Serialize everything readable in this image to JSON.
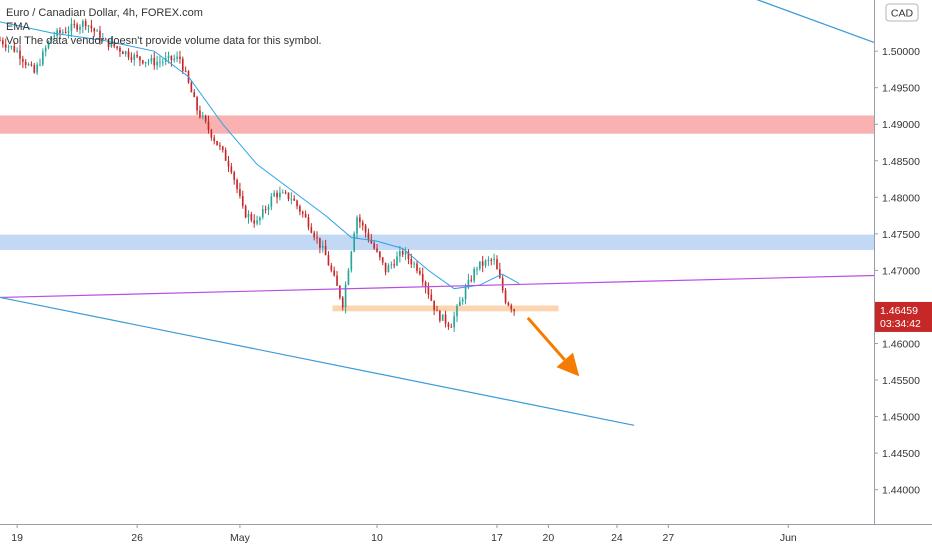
{
  "chart_data": {
    "type": "candlestick",
    "symbol_title": "Euro / Canadian Dollar, 4h, FOREX.com",
    "indicator_label": "EMA",
    "notice": "Vol The data vendor doesn't provide volume data for this symbol.",
    "currency_badge": "CAD",
    "last_price_label": "1.46459",
    "countdown_label": "03:34:42",
    "price_axis": {
      "ylim": [
        1.4353,
        1.507
      ],
      "ticks": [
        "1.50000",
        "1.49500",
        "1.49000",
        "1.48500",
        "1.48000",
        "1.47500",
        "1.47000",
        "1.46500",
        "1.46000",
        "1.45500",
        "1.45000",
        "1.44500",
        "1.44000"
      ]
    },
    "time_axis": {
      "x_range_days": [
        0,
        51
      ],
      "ticks": [
        {
          "day": 1,
          "label": "19"
        },
        {
          "day": 8,
          "label": "26"
        },
        {
          "day": 14,
          "label": "May"
        },
        {
          "day": 22,
          "label": "10"
        },
        {
          "day": 29,
          "label": "17"
        },
        {
          "day": 32,
          "label": "20"
        },
        {
          "day": 36,
          "label": "24"
        },
        {
          "day": 39,
          "label": "27"
        },
        {
          "day": 46,
          "label": "Jun"
        }
      ]
    },
    "price_path": [
      {
        "day": 0.0,
        "price": 1.5015
      },
      {
        "day": 1.0,
        "price": 1.5
      },
      {
        "day": 2.0,
        "price": 1.497
      },
      {
        "day": 3.0,
        "price": 1.502
      },
      {
        "day": 5.0,
        "price": 1.504
      },
      {
        "day": 6.0,
        "price": 1.5015
      },
      {
        "day": 8.0,
        "price": 1.499
      },
      {
        "day": 9.0,
        "price": 1.4985
      },
      {
        "day": 10.5,
        "price": 1.499
      },
      {
        "day": 11.5,
        "price": 1.492
      },
      {
        "day": 12.5,
        "price": 1.488
      },
      {
        "day": 13.5,
        "price": 1.484
      },
      {
        "day": 14.2,
        "price": 1.478
      },
      {
        "day": 15.0,
        "price": 1.4765
      },
      {
        "day": 16.0,
        "price": 1.4805
      },
      {
        "day": 17.0,
        "price": 1.48
      },
      {
        "day": 18.0,
        "price": 1.4765
      },
      {
        "day": 19.0,
        "price": 1.472
      },
      {
        "day": 20.0,
        "price": 1.4655
      },
      {
        "day": 20.8,
        "price": 1.4775
      },
      {
        "day": 21.5,
        "price": 1.4745
      },
      {
        "day": 22.5,
        "price": 1.47
      },
      {
        "day": 23.5,
        "price": 1.4725
      },
      {
        "day": 24.5,
        "price": 1.47
      },
      {
        "day": 25.5,
        "price": 1.464
      },
      {
        "day": 26.3,
        "price": 1.4625
      },
      {
        "day": 27.0,
        "price": 1.4665
      },
      {
        "day": 27.8,
        "price": 1.4705
      },
      {
        "day": 28.8,
        "price": 1.4715
      },
      {
        "day": 29.5,
        "price": 1.466
      },
      {
        "day": 30.0,
        "price": 1.4646
      }
    ],
    "ema": [
      {
        "day": 0.0,
        "price": 1.504
      },
      {
        "day": 3.0,
        "price": 1.5025
      },
      {
        "day": 6.0,
        "price": 1.5015
      },
      {
        "day": 9.0,
        "price": 1.5
      },
      {
        "day": 11.0,
        "price": 1.4965
      },
      {
        "day": 13.0,
        "price": 1.49
      },
      {
        "day": 15.0,
        "price": 1.4845
      },
      {
        "day": 17.0,
        "price": 1.481
      },
      {
        "day": 19.0,
        "price": 1.4775
      },
      {
        "day": 20.5,
        "price": 1.4745
      },
      {
        "day": 22.0,
        "price": 1.474
      },
      {
        "day": 23.5,
        "price": 1.473
      },
      {
        "day": 25.0,
        "price": 1.47
      },
      {
        "day": 26.5,
        "price": 1.4675
      },
      {
        "day": 28.0,
        "price": 1.468
      },
      {
        "day": 29.3,
        "price": 1.4695
      },
      {
        "day": 30.3,
        "price": 1.4682
      }
    ],
    "zones": [
      {
        "name": "resistance",
        "from_day": 0,
        "to_day": 51,
        "price_low": 1.4887,
        "price_high": 1.4912,
        "color": "#f8a9a9"
      },
      {
        "name": "support-resistance",
        "from_day": 0,
        "to_day": 51,
        "price_low": 1.4728,
        "price_high": 1.4749,
        "color": "#bcd4f4"
      },
      {
        "name": "support",
        "from_day": 19.4,
        "to_day": 32.6,
        "price_low": 1.4644,
        "price_high": 1.4652,
        "color": "#fbd0a8"
      }
    ],
    "trendlines": [
      {
        "name": "purple",
        "points": [
          [
            0.0,
            1.4663
          ],
          [
            51.0,
            1.4693
          ]
        ],
        "color": "#b74fe0"
      },
      {
        "name": "lower-blue",
        "points": [
          [
            0.0,
            1.4663
          ],
          [
            37.0,
            1.4488
          ]
        ],
        "color": "#3a9ad9"
      },
      {
        "name": "upper-blue",
        "points": [
          [
            44.0,
            1.5072
          ],
          [
            51.0,
            1.5012
          ]
        ],
        "color": "#3a9ad9"
      }
    ],
    "arrow": {
      "from": [
        30.8,
        1.4635
      ],
      "to": [
        33.8,
        1.4555
      ],
      "color": "#f57c00"
    },
    "colors": {
      "up": "#26a69a",
      "down": "#c62828",
      "ema": "#2aa4e6",
      "last_price": "#c62828"
    }
  }
}
